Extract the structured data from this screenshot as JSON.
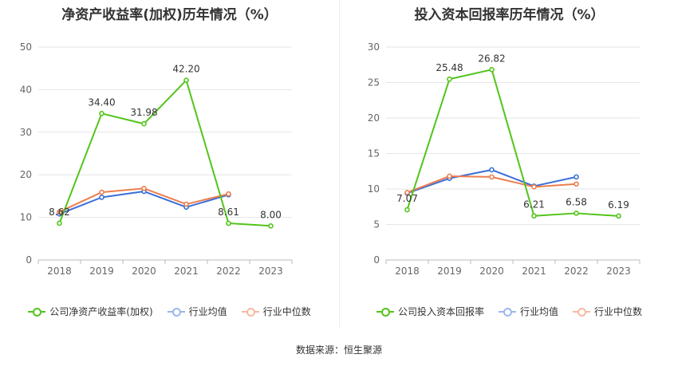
{
  "chart_data": [
    {
      "type": "line",
      "title": "净资产收益率(加权)历年情况（%）",
      "categories": [
        "2018",
        "2019",
        "2020",
        "2021",
        "2022",
        "2023"
      ],
      "ylim": [
        0,
        50
      ],
      "yticks": [
        0,
        10,
        20,
        30,
        40,
        50
      ],
      "grid": true,
      "legend_position": "bottom",
      "series": [
        {
          "name": "公司净资产收益率(加权)",
          "color": "#52c41a",
          "values": [
            8.62,
            34.4,
            31.98,
            42.2,
            8.61,
            8.0
          ],
          "labels": [
            "8.62",
            "34.40",
            "31.98",
            "42.20",
            "8.61",
            "8.00"
          ]
        },
        {
          "name": "行业均值",
          "color": "#3a6fd8",
          "values": [
            10.8,
            14.7,
            16.1,
            12.4,
            15.3,
            null
          ]
        },
        {
          "name": "行业中位数",
          "color": "#ee7d4e",
          "values": [
            11.3,
            15.9,
            16.8,
            13.1,
            15.5,
            null
          ]
        }
      ]
    },
    {
      "type": "line",
      "title": "投入资本回报率历年情况（%）",
      "categories": [
        "2018",
        "2019",
        "2020",
        "2021",
        "2022",
        "2023"
      ],
      "ylim": [
        0,
        30
      ],
      "yticks": [
        0,
        5,
        10,
        15,
        20,
        25,
        30
      ],
      "grid": true,
      "legend_position": "bottom",
      "series": [
        {
          "name": "公司投入资本回报率",
          "color": "#52c41a",
          "values": [
            7.07,
            25.48,
            26.82,
            6.21,
            6.58,
            6.19
          ],
          "labels": [
            "7.07",
            "25.48",
            "26.82",
            "6.21",
            "6.58",
            "6.19"
          ]
        },
        {
          "name": "行业均值",
          "color": "#3a6fd8",
          "values": [
            9.4,
            11.5,
            12.7,
            10.4,
            11.7,
            null
          ]
        },
        {
          "name": "行业中位数",
          "color": "#ee7d4e",
          "values": [
            9.5,
            11.8,
            11.7,
            10.3,
            10.7,
            null
          ]
        }
      ]
    }
  ],
  "source_text": "数据来源：恒生聚源"
}
